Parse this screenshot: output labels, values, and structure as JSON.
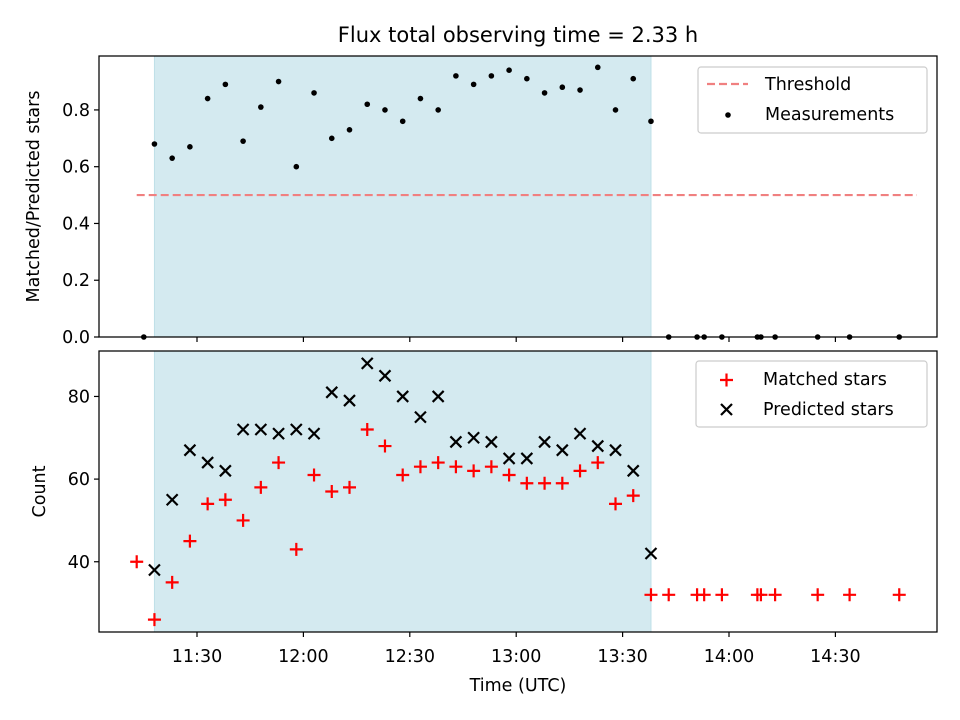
{
  "chart_data": {
    "type": "scatter",
    "title": "Flux total observing time = 2.33 h",
    "xlabel": "Time (UTC)",
    "x_ticks": [
      "11:30",
      "12:00",
      "12:30",
      "13:00",
      "13:30",
      "14:00",
      "14:30"
    ],
    "observing_window": {
      "start": "11:18",
      "end": "13:38",
      "color": "#d4eaf0"
    },
    "top_panel": {
      "ylabel": "Matched/Predicted stars",
      "ylim": [
        0.0,
        0.99
      ],
      "y_ticks": [
        "0.0",
        "0.2",
        "0.4",
        "0.6",
        "0.8"
      ],
      "threshold": {
        "name": "Threshold",
        "value": 0.5,
        "x_range": [
          "11:13",
          "14:53"
        ],
        "color": "#f08080"
      },
      "series": [
        {
          "name": "Measurements",
          "color": "#000000",
          "points": [
            [
              "11:15",
              0.0
            ],
            [
              "11:18",
              0.68
            ],
            [
              "11:23",
              0.63
            ],
            [
              "11:28",
              0.67
            ],
            [
              "11:33",
              0.84
            ],
            [
              "11:38",
              0.89
            ],
            [
              "11:43",
              0.69
            ],
            [
              "11:48",
              0.81
            ],
            [
              "11:53",
              0.9
            ],
            [
              "11:58",
              0.6
            ],
            [
              "12:03",
              0.86
            ],
            [
              "12:08",
              0.7
            ],
            [
              "12:13",
              0.73
            ],
            [
              "12:18",
              0.82
            ],
            [
              "12:23",
              0.8
            ],
            [
              "12:28",
              0.76
            ],
            [
              "12:33",
              0.84
            ],
            [
              "12:38",
              0.8
            ],
            [
              "12:43",
              0.92
            ],
            [
              "12:48",
              0.89
            ],
            [
              "12:53",
              0.92
            ],
            [
              "12:58",
              0.94
            ],
            [
              "13:03",
              0.91
            ],
            [
              "13:08",
              0.86
            ],
            [
              "13:13",
              0.88
            ],
            [
              "13:18",
              0.87
            ],
            [
              "13:23",
              0.95
            ],
            [
              "13:28",
              0.8
            ],
            [
              "13:33",
              0.91
            ],
            [
              "13:38",
              0.76
            ],
            [
              "13:43",
              0.0
            ],
            [
              "13:51",
              0.0
            ],
            [
              "13:53",
              0.0
            ],
            [
              "13:58",
              0.0
            ],
            [
              "14:08",
              0.0
            ],
            [
              "14:09",
              0.0
            ],
            [
              "14:13",
              0.0
            ],
            [
              "14:25",
              0.0
            ],
            [
              "14:34",
              0.0
            ],
            [
              "14:48",
              0.0
            ]
          ]
        }
      ]
    },
    "bottom_panel": {
      "ylabel": "Count",
      "ylim": [
        23,
        91
      ],
      "y_ticks": [
        "40",
        "60",
        "80"
      ],
      "series": [
        {
          "name": "Matched stars",
          "marker": "+",
          "color": "#ff0000",
          "points": [
            [
              "11:13",
              40
            ],
            [
              "11:18",
              26
            ],
            [
              "11:23",
              35
            ],
            [
              "11:28",
              45
            ],
            [
              "11:33",
              54
            ],
            [
              "11:38",
              55
            ],
            [
              "11:43",
              50
            ],
            [
              "11:48",
              58
            ],
            [
              "11:53",
              64
            ],
            [
              "11:58",
              43
            ],
            [
              "12:03",
              61
            ],
            [
              "12:08",
              57
            ],
            [
              "12:13",
              58
            ],
            [
              "12:18",
              72
            ],
            [
              "12:23",
              68
            ],
            [
              "12:28",
              61
            ],
            [
              "12:33",
              63
            ],
            [
              "12:38",
              64
            ],
            [
              "12:43",
              63
            ],
            [
              "12:48",
              62
            ],
            [
              "12:53",
              63
            ],
            [
              "12:58",
              61
            ],
            [
              "13:03",
              59
            ],
            [
              "13:08",
              59
            ],
            [
              "13:13",
              59
            ],
            [
              "13:18",
              62
            ],
            [
              "13:23",
              64
            ],
            [
              "13:28",
              54
            ],
            [
              "13:33",
              56
            ],
            [
              "13:38",
              32
            ],
            [
              "13:43",
              32
            ],
            [
              "13:51",
              32
            ],
            [
              "13:53",
              32
            ],
            [
              "13:58",
              32
            ],
            [
              "14:08",
              32
            ],
            [
              "14:09",
              32
            ],
            [
              "14:13",
              32
            ],
            [
              "14:25",
              32
            ],
            [
              "14:34",
              32
            ],
            [
              "14:48",
              32
            ]
          ]
        },
        {
          "name": "Predicted stars",
          "marker": "x",
          "color": "#000000",
          "points": [
            [
              "11:18",
              38
            ],
            [
              "11:23",
              55
            ],
            [
              "11:28",
              67
            ],
            [
              "11:33",
              64
            ],
            [
              "11:38",
              62
            ],
            [
              "11:43",
              72
            ],
            [
              "11:48",
              72
            ],
            [
              "11:53",
              71
            ],
            [
              "11:58",
              72
            ],
            [
              "12:03",
              71
            ],
            [
              "12:08",
              81
            ],
            [
              "12:13",
              79
            ],
            [
              "12:18",
              88
            ],
            [
              "12:23",
              85
            ],
            [
              "12:28",
              80
            ],
            [
              "12:33",
              75
            ],
            [
              "12:38",
              80
            ],
            [
              "12:43",
              69
            ],
            [
              "12:48",
              70
            ],
            [
              "12:53",
              69
            ],
            [
              "12:58",
              65
            ],
            [
              "13:03",
              65
            ],
            [
              "13:08",
              69
            ],
            [
              "13:13",
              67
            ],
            [
              "13:18",
              71
            ],
            [
              "13:23",
              68
            ],
            [
              "13:28",
              67
            ],
            [
              "13:33",
              62
            ],
            [
              "13:38",
              42
            ]
          ]
        }
      ]
    }
  }
}
